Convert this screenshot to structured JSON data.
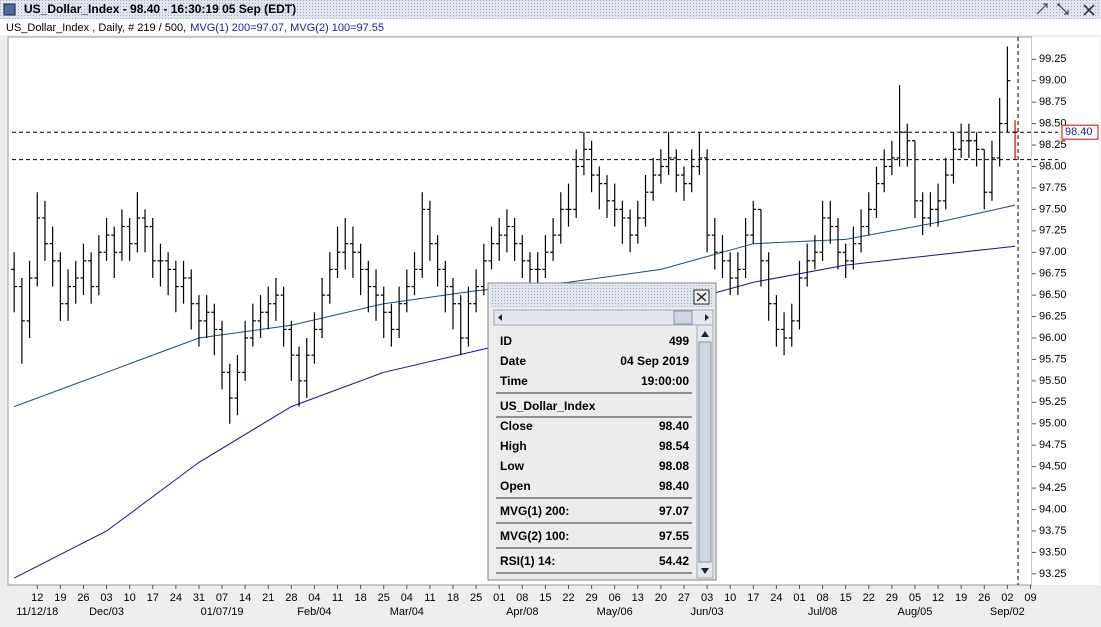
{
  "window": {
    "title": "US_Dollar_Index - 98.40 - 16:30:19  05 Sep (EDT)"
  },
  "header": {
    "info": "US_Dollar_Index , Daily, # 219 / 500,",
    "indicators": "MVG(1) 200=97.07, MVG(2) 100=97.55"
  },
  "chart_data": {
    "type": "ohlc",
    "color": "#000000",
    "highlight_color": "#e00000",
    "open": [
      96.8,
      96.6,
      96.2,
      96.7,
      97.4,
      97.1,
      96.9,
      96.4,
      96.6,
      96.7,
      96.9,
      96.6,
      97.0,
      97.2,
      97.0,
      97.3,
      97.1,
      97.4,
      97.3,
      96.9,
      96.9,
      96.8,
      96.6,
      96.7,
      96.4,
      96.2,
      96.3,
      96.1,
      95.6,
      95.3,
      95.6,
      96.0,
      96.2,
      96.3,
      96.4,
      96.5,
      96.1,
      95.8,
      95.5,
      95.8,
      96.1,
      96.5,
      96.8,
      97.0,
      97.1,
      97.0,
      96.8,
      96.6,
      96.5,
      96.3,
      96.1,
      96.4,
      96.6,
      96.8,
      97.5,
      97.1,
      96.8,
      96.6,
      96.4,
      96.0,
      96.4,
      96.6,
      96.9,
      97.1,
      97.2,
      97.3,
      97.1,
      96.9,
      96.8,
      96.8,
      97.0,
      97.2,
      97.5,
      97.5,
      98.0,
      98.2,
      97.9,
      97.8,
      97.6,
      97.5,
      97.4,
      97.2,
      97.4,
      97.7,
      97.9,
      98.0,
      98.1,
      97.9,
      97.8,
      98.0,
      98.1,
      97.2,
      97.0,
      96.9,
      96.7,
      96.8,
      97.2,
      97.5,
      96.9,
      96.4,
      96.1,
      96.0,
      96.2,
      96.7,
      96.9,
      97.0,
      97.4,
      97.3,
      97.0,
      96.9,
      97.1,
      97.3,
      97.5,
      97.8,
      98.0,
      98.1,
      98.4,
      98.3,
      97.6,
      97.4,
      97.5,
      97.6,
      97.9,
      98.2,
      98.3,
      98.3,
      98.2,
      97.7,
      98.1,
      98.5,
      98.4
    ],
    "high": [
      97.0,
      96.7,
      96.9,
      97.7,
      97.6,
      97.3,
      97.0,
      96.8,
      96.9,
      97.1,
      97.0,
      97.2,
      97.4,
      97.3,
      97.5,
      97.4,
      97.7,
      97.5,
      97.4,
      97.1,
      97.0,
      96.9,
      96.9,
      96.8,
      96.5,
      96.5,
      96.4,
      96.2,
      95.7,
      95.8,
      96.2,
      96.4,
      96.5,
      96.6,
      96.7,
      96.6,
      96.2,
      95.9,
      96.0,
      96.3,
      96.7,
      97.0,
      97.3,
      97.4,
      97.3,
      97.1,
      96.9,
      96.8,
      96.6,
      96.4,
      96.6,
      96.8,
      97.0,
      97.7,
      97.6,
      97.2,
      96.9,
      96.7,
      96.5,
      96.6,
      96.8,
      97.1,
      97.3,
      97.4,
      97.5,
      97.4,
      97.2,
      97.0,
      97.0,
      97.2,
      97.4,
      97.7,
      97.8,
      98.2,
      98.4,
      98.3,
      98.0,
      97.9,
      97.8,
      97.6,
      97.5,
      97.6,
      97.9,
      98.1,
      98.2,
      98.4,
      98.2,
      98.0,
      98.2,
      98.4,
      98.2,
      97.4,
      97.2,
      97.0,
      97.0,
      97.4,
      97.6,
      97.5,
      97.0,
      96.5,
      96.3,
      96.4,
      96.9,
      97.1,
      97.2,
      97.6,
      97.6,
      97.4,
      97.1,
      97.3,
      97.5,
      97.7,
      98.0,
      98.2,
      98.3,
      98.95,
      98.5,
      98.3,
      97.7,
      97.7,
      97.8,
      98.1,
      98.4,
      98.5,
      98.5,
      98.4,
      98.2,
      98.3,
      98.8,
      99.4,
      98.54
    ],
    "low": [
      96.3,
      95.7,
      96.0,
      96.6,
      96.9,
      96.6,
      96.2,
      96.2,
      96.4,
      96.5,
      96.4,
      96.5,
      96.9,
      96.7,
      96.9,
      96.9,
      97.0,
      97.0,
      96.7,
      96.6,
      96.5,
      96.3,
      96.4,
      96.1,
      95.9,
      96.0,
      95.8,
      95.4,
      95.0,
      95.1,
      95.5,
      95.9,
      96.0,
      96.1,
      96.2,
      95.9,
      95.5,
      95.2,
      95.3,
      95.7,
      96.0,
      96.4,
      96.7,
      96.8,
      96.7,
      96.5,
      96.3,
      96.2,
      96.0,
      95.9,
      96.0,
      96.3,
      96.5,
      96.7,
      96.9,
      96.6,
      96.3,
      96.1,
      95.8,
      95.9,
      96.3,
      96.5,
      96.8,
      96.9,
      97.0,
      96.9,
      96.7,
      96.6,
      96.6,
      96.7,
      96.9,
      97.1,
      97.3,
      97.4,
      97.9,
      97.7,
      97.5,
      97.4,
      97.3,
      97.1,
      97.0,
      97.1,
      97.3,
      97.6,
      97.8,
      97.9,
      97.7,
      97.6,
      97.7,
      97.9,
      97.0,
      96.8,
      96.7,
      96.5,
      96.5,
      96.7,
      97.1,
      96.6,
      96.2,
      95.9,
      95.8,
      95.9,
      96.1,
      96.6,
      96.8,
      96.9,
      97.1,
      96.8,
      96.7,
      96.8,
      97.0,
      97.2,
      97.4,
      97.7,
      97.9,
      98.0,
      98.0,
      97.4,
      97.2,
      97.3,
      97.3,
      97.5,
      97.8,
      98.1,
      98.1,
      98.0,
      97.5,
      97.6,
      98.0,
      98.4,
      98.08
    ],
    "close": [
      96.6,
      96.2,
      96.7,
      97.4,
      97.1,
      96.9,
      96.4,
      96.6,
      96.7,
      96.9,
      96.6,
      97.0,
      97.2,
      97.0,
      97.3,
      97.1,
      97.4,
      97.3,
      96.9,
      96.9,
      96.8,
      96.6,
      96.7,
      96.4,
      96.2,
      96.3,
      96.1,
      95.6,
      95.3,
      95.6,
      96.0,
      96.2,
      96.3,
      96.4,
      96.5,
      96.1,
      95.8,
      95.5,
      95.8,
      96.1,
      96.5,
      96.8,
      97.0,
      97.1,
      97.0,
      96.8,
      96.6,
      96.5,
      96.3,
      96.1,
      96.4,
      96.6,
      96.8,
      97.5,
      97.1,
      96.8,
      96.6,
      96.4,
      96.0,
      96.4,
      96.6,
      96.9,
      97.1,
      97.2,
      97.3,
      97.1,
      96.9,
      96.8,
      96.8,
      97.0,
      97.2,
      97.5,
      97.5,
      98.0,
      98.2,
      97.9,
      97.8,
      97.6,
      97.5,
      97.4,
      97.2,
      97.4,
      97.7,
      97.9,
      98.0,
      98.1,
      97.9,
      97.8,
      98.0,
      98.1,
      97.2,
      97.0,
      96.9,
      96.7,
      96.8,
      97.2,
      97.5,
      96.9,
      96.4,
      96.1,
      96.0,
      96.2,
      96.7,
      96.9,
      97.0,
      97.4,
      97.3,
      97.0,
      96.9,
      97.1,
      97.3,
      97.5,
      97.8,
      98.0,
      98.1,
      98.4,
      98.3,
      97.6,
      97.4,
      97.5,
      97.6,
      97.9,
      98.2,
      98.3,
      98.3,
      98.2,
      97.7,
      98.1,
      98.5,
      99.0,
      98.4
    ],
    "series": [
      {
        "color": "#14148c",
        "x": [
          0,
          12,
          24,
          36,
          48,
          60,
          72,
          84,
          96,
          108,
          120,
          130
        ],
        "values": [
          93.2,
          93.75,
          94.55,
          95.2,
          95.6,
          95.85,
          96.1,
          96.35,
          96.65,
          96.85,
          96.97,
          97.07
        ]
      },
      {
        "color": "#1e4d6e",
        "x": [
          0,
          12,
          24,
          36,
          48,
          60,
          72,
          84,
          96,
          108,
          120,
          130
        ],
        "values": [
          95.2,
          95.6,
          96.0,
          96.15,
          96.4,
          96.55,
          96.65,
          96.8,
          97.1,
          97.15,
          97.35,
          97.55
        ]
      }
    ],
    "guide_lines": [
      {
        "value": 98.4,
        "label": "98.40"
      },
      98.08
    ],
    "xlim": [
      -0.8,
      132.2
    ],
    "ylim": [
      93.12,
      99.51
    ],
    "yticks": [
      93.25,
      {
        "value": 93.5,
        "label": "93.50"
      },
      93.75,
      {
        "value": 94,
        "label": "94.00"
      },
      94.25,
      {
        "value": 94.5,
        "label": "94.50"
      },
      94.75,
      {
        "value": 95,
        "label": "95.00"
      },
      95.25,
      {
        "value": 95.5,
        "label": "95.50"
      },
      95.75,
      {
        "value": 96,
        "label": "96.00"
      },
      96.25,
      {
        "value": 96.5,
        "label": "96.50"
      },
      96.75,
      {
        "value": 97,
        "label": "97.00"
      },
      97.25,
      {
        "value": 97.5,
        "label": "97.50"
      },
      97.75,
      {
        "value": 98,
        "label": "98.00"
      },
      98.25,
      {
        "value": 98.5,
        "label": "98.50"
      },
      98.75,
      {
        "value": 99,
        "label": "99.00"
      },
      99.25
    ],
    "xticks": [
      {
        "value": 3,
        "label": "12"
      },
      {
        "value": 6,
        "label": "19"
      },
      {
        "value": 9,
        "label": "26"
      },
      {
        "value": 12,
        "label": "03"
      },
      {
        "value": 15,
        "label": "10"
      },
      {
        "value": 18,
        "label": "17"
      },
      {
        "value": 21,
        "label": "24"
      },
      {
        "value": 24,
        "label": "31"
      },
      {
        "value": 27,
        "label": "07"
      },
      {
        "value": 30,
        "label": "14"
      },
      {
        "value": 33,
        "label": "21"
      },
      {
        "value": 36,
        "label": "28"
      },
      {
        "value": 39,
        "label": "04"
      },
      {
        "value": 42,
        "label": "11"
      },
      {
        "value": 45,
        "label": "18"
      },
      {
        "value": 48,
        "label": "25"
      },
      {
        "value": 51,
        "label": "04"
      },
      {
        "value": 54,
        "label": "11"
      },
      {
        "value": 57,
        "label": "18"
      },
      {
        "value": 60,
        "label": "25"
      },
      {
        "value": 63,
        "label": "01"
      },
      {
        "value": 66,
        "label": "08"
      },
      {
        "value": 69,
        "label": "15"
      },
      {
        "value": 72,
        "label": "22"
      },
      {
        "value": 75,
        "label": "29"
      },
      {
        "value": 78,
        "label": "06"
      },
      {
        "value": 81,
        "label": "13"
      },
      {
        "value": 84,
        "label": "20"
      },
      {
        "value": 87,
        "label": "27"
      },
      {
        "value": 90,
        "label": "03"
      },
      {
        "value": 93,
        "label": "10"
      },
      {
        "value": 96,
        "label": "17"
      },
      {
        "value": 99,
        "label": "24"
      },
      {
        "value": 102,
        "label": "01"
      },
      {
        "value": 105,
        "label": "08"
      },
      {
        "value": 108,
        "label": "15"
      },
      {
        "value": 111,
        "label": "22"
      },
      {
        "value": 114,
        "label": "29"
      },
      {
        "value": 117,
        "label": "05"
      },
      {
        "value": 120,
        "label": "12"
      },
      {
        "value": 123,
        "label": "19"
      },
      {
        "value": 126,
        "label": "26"
      },
      {
        "value": 129,
        "label": "02"
      },
      {
        "value": 132,
        "label": "09"
      }
    ],
    "xticks2": [
      {
        "value": 3,
        "label": "11/12/18"
      },
      {
        "value": 12,
        "label": "Dec/03"
      },
      {
        "value": 27,
        "label": "01/07/19"
      },
      {
        "value": 39,
        "label": "Feb/04"
      },
      {
        "value": 51,
        "label": "Mar/04"
      },
      {
        "value": 66,
        "label": "Apr/08"
      },
      {
        "value": 78,
        "label": "May/06"
      },
      {
        "value": 90,
        "label": "Jun/03"
      },
      {
        "value": 105,
        "label": "Jul/08"
      },
      {
        "value": 117,
        "label": "Aug/05"
      },
      {
        "value": 129,
        "label": "Sep/02"
      }
    ]
  },
  "popup": {
    "section": "US_Dollar_Index",
    "groups": [
      [
        [
          "ID",
          "499"
        ],
        [
          "Date",
          "04 Sep 2019"
        ],
        [
          "Time",
          "19:00:00"
        ]
      ],
      [
        [
          "Close",
          "98.40"
        ],
        [
          "High",
          "98.54"
        ],
        [
          "Low",
          "98.08"
        ],
        [
          "Open",
          "98.40"
        ]
      ],
      [
        [
          "MVG(1) 200:",
          "97.07"
        ]
      ],
      [
        [
          "MVG(2) 100:",
          "97.55"
        ]
      ],
      [
        [
          "RSI(1) 14:",
          "54.42"
        ]
      ]
    ]
  }
}
